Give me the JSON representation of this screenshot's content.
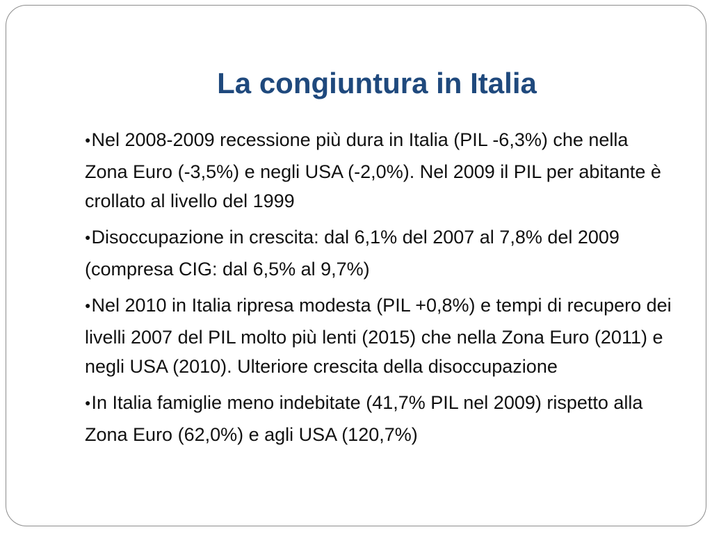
{
  "slide": {
    "title": "La congiuntura in Italia",
    "bullets": [
      {
        "text": "Nel 2008-2009 recessione più dura in Italia (PIL -6,3%) che nella Zona Euro (-3,5%) e negli USA (-2,0%). Nel 2009 il PIL per abitante è crollato al livello del 1999"
      },
      {
        "text": "Disoccupazione in crescita: dal 6,1% del 2007 al 7,8% del 2009 (compresa CIG: dal 6,5% al 9,7%)"
      },
      {
        "text": "Nel 2010 in Italia ripresa modesta (PIL +0,8%) e tempi di recupero dei livelli 2007 del PIL molto più lenti (2015) che nella Zona Euro (2011) e negli USA (2010). Ulteriore crescita della disoccupazione"
      },
      {
        "text": "In Italia famiglie meno indebitate (41,7% PIL nel 2009) rispetto alla Zona Euro (62,0%) e agli USA (120,7%)"
      }
    ]
  }
}
